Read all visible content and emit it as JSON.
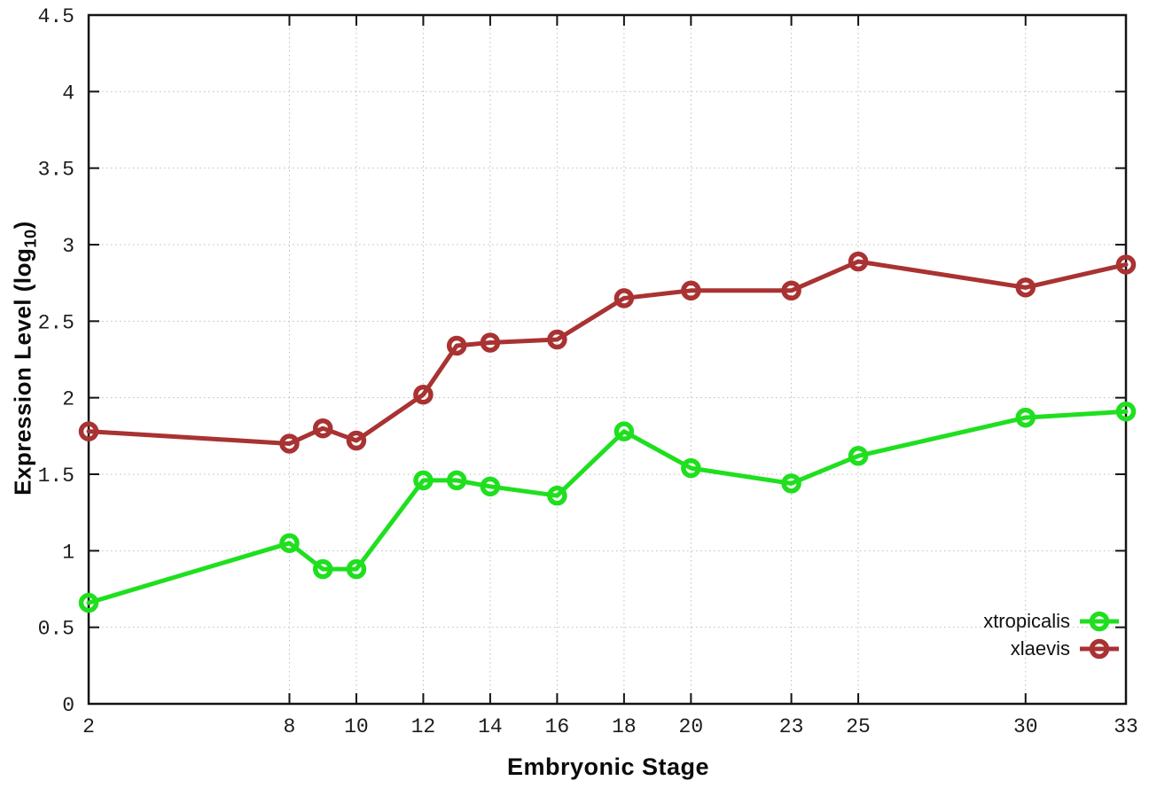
{
  "chart_data": {
    "type": "line",
    "title": "",
    "xlabel": "Embryonic Stage",
    "ylabel": "Expression Level (log10)",
    "ylabel_parts": {
      "pre": "Expression Level (log",
      "sub": "10",
      "post": ")"
    },
    "xlim": [
      2,
      33
    ],
    "ylim": [
      0,
      4.5
    ],
    "x_ticks": [
      2,
      8,
      10,
      12,
      14,
      16,
      18,
      20,
      23,
      25,
      30,
      33
    ],
    "y_ticks": [
      0,
      0.5,
      1,
      1.5,
      2,
      2.5,
      3,
      3.5,
      4,
      4.5
    ],
    "grid": true,
    "legend_position": "bottom-right",
    "marker": "open-circle",
    "series": [
      {
        "name": "xtropicalis",
        "color": "#1fdf1f",
        "x": [
          2,
          8,
          9,
          10,
          12,
          13,
          14,
          16,
          18,
          20,
          23,
          25,
          30,
          33
        ],
        "y": [
          0.66,
          1.05,
          0.88,
          0.88,
          1.46,
          1.46,
          1.42,
          1.36,
          1.78,
          1.54,
          1.44,
          1.62,
          1.87,
          1.91
        ]
      },
      {
        "name": "xlaevis",
        "color": "#a93232",
        "x": [
          2,
          8,
          9,
          10,
          12,
          13,
          14,
          16,
          18,
          20,
          23,
          25,
          30,
          33
        ],
        "y": [
          1.78,
          1.7,
          1.8,
          1.72,
          2.02,
          2.34,
          2.36,
          2.38,
          2.65,
          2.7,
          2.7,
          2.89,
          2.72,
          2.87
        ]
      }
    ]
  }
}
